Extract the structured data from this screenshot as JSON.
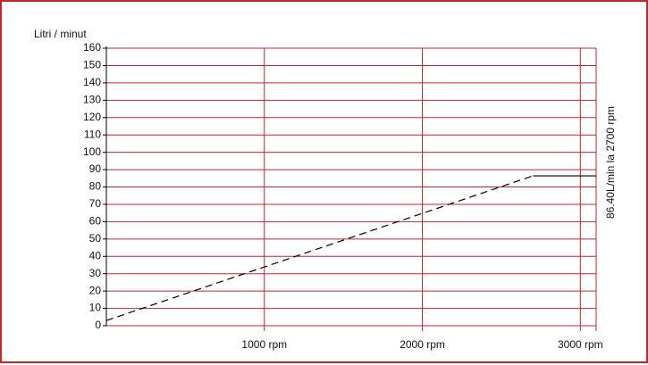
{
  "colors": {
    "frame": "#c0272d",
    "grid": "#c0272d",
    "line": "#000000"
  },
  "chart_data": {
    "type": "line",
    "ylabel": "Litri / minut",
    "yticks": [
      0,
      10,
      20,
      30,
      40,
      50,
      60,
      70,
      80,
      90,
      100,
      110,
      120,
      130,
      140,
      150,
      160
    ],
    "ylim": [
      0,
      160
    ],
    "xlim": [
      0,
      3100
    ],
    "xticks": [
      {
        "value": 1000,
        "label": "1000 rpm"
      },
      {
        "value": 2000,
        "label": "2000 rpm"
      },
      {
        "value": 3000,
        "label": "3000 rpm"
      }
    ],
    "grid": true,
    "series": [
      {
        "style": "dashed",
        "x": [
          0,
          2700
        ],
        "y": [
          3,
          86.4
        ]
      },
      {
        "style": "solid",
        "x": [
          2700,
          3100
        ],
        "y": [
          86.4,
          86.4
        ]
      }
    ],
    "annotation": "86.40L/min la 2700 rpm"
  }
}
